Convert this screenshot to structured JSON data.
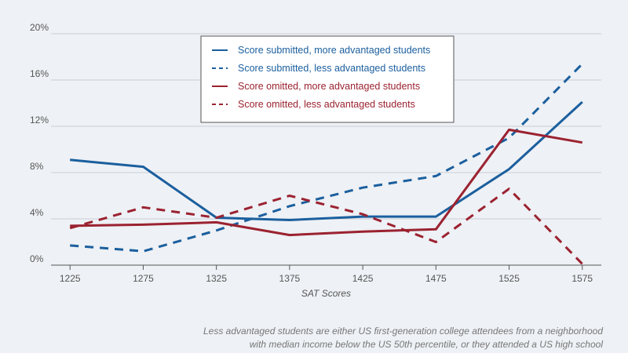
{
  "chart_data": {
    "type": "line",
    "xlabel": "SAT Scores",
    "ylabel": "",
    "x": [
      1225,
      1275,
      1325,
      1375,
      1425,
      1475,
      1525,
      1575
    ],
    "ylim": [
      0,
      20
    ],
    "yticks": [
      "0%",
      "4%",
      "8%",
      "12%",
      "16%",
      "20%"
    ],
    "ytick_values": [
      0,
      4,
      8,
      12,
      16,
      20
    ],
    "grid": true,
    "legend_position": "top-center",
    "series": [
      {
        "name": "Score submitted, more advantaged students",
        "values": [
          9.1,
          8.5,
          4.1,
          3.9,
          4.2,
          4.2,
          8.3,
          14.1
        ],
        "color": "#1b5f9e",
        "dash": false
      },
      {
        "name": "Score submitted, less advantaged students",
        "values": [
          1.7,
          1.2,
          3.0,
          5.1,
          6.7,
          7.7,
          11.0,
          17.4
        ],
        "color": "#1b5f9e",
        "dash": true
      },
      {
        "name": "Score omitted, more advantaged students",
        "values": [
          3.4,
          3.5,
          3.7,
          2.6,
          2.9,
          3.1,
          11.7,
          10.6
        ],
        "color": "#9b2230",
        "dash": false
      },
      {
        "name": "Score omitted, less advantaged students",
        "values": [
          3.2,
          5.0,
          4.1,
          6.0,
          4.4,
          2.0,
          6.6,
          0.1
        ],
        "color": "#9b2230",
        "dash": true
      }
    ]
  },
  "note": {
    "line1": "Less advantaged students are either US first-generation college attendees from a neighborhood",
    "line2": "with median income below the US 50th percentile, or they attended a US high school"
  }
}
